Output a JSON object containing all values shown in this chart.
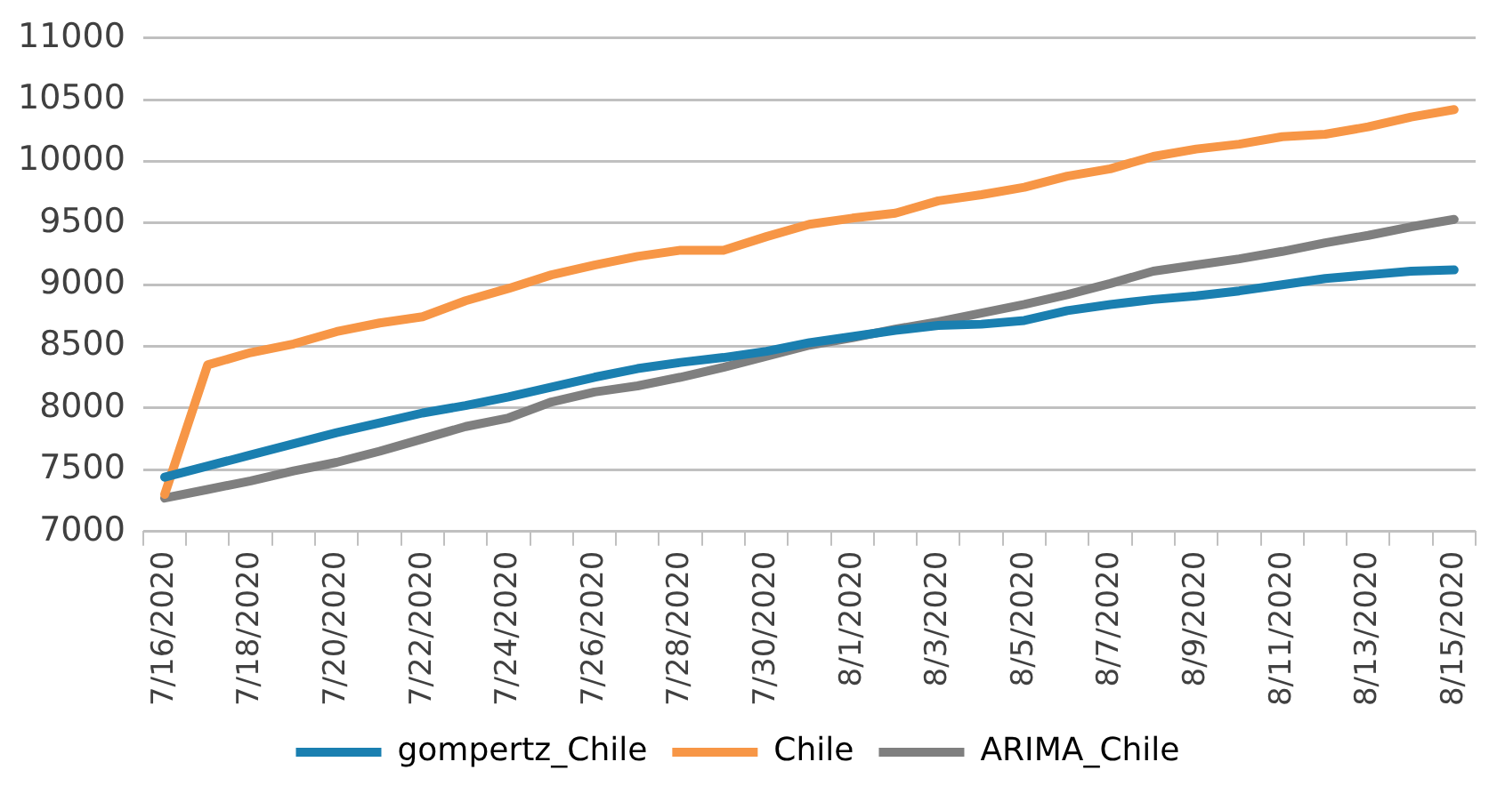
{
  "chart_data": {
    "type": "line",
    "categories": [
      "7/16/2020",
      null,
      "7/18/2020",
      null,
      "7/20/2020",
      null,
      "7/22/2020",
      null,
      "7/24/2020",
      null,
      "7/26/2020",
      null,
      "7/28/2020",
      null,
      "7/30/2020",
      null,
      "8/1/2020",
      null,
      "8/3/2020",
      null,
      "8/5/2020",
      null,
      "8/7/2020",
      null,
      "8/9/2020",
      null,
      "8/11/2020",
      null,
      "8/13/2020",
      null,
      "8/15/2020"
    ],
    "series": [
      {
        "name": "gompertz_Chile",
        "color": "#1a7fb0",
        "values": [
          7440,
          7530,
          7620,
          7710,
          7800,
          7880,
          7960,
          8020,
          8090,
          8170,
          8250,
          8320,
          8370,
          8410,
          8460,
          8530,
          8580,
          8630,
          8670,
          8680,
          8710,
          8790,
          8840,
          8880,
          8910,
          8950,
          9000,
          9050,
          9080,
          9110,
          9120
        ]
      },
      {
        "name": "Chile",
        "color": "#f79646",
        "values": [
          7300,
          8350,
          8450,
          8520,
          8620,
          8690,
          8740,
          8870,
          8970,
          9080,
          9160,
          9230,
          9280,
          9280,
          9390,
          9490,
          9540,
          9580,
          9680,
          9730,
          9790,
          9880,
          9940,
          10040,
          10100,
          10140,
          10200,
          10220,
          10280,
          10360,
          10420
        ]
      },
      {
        "name": "ARIMA_Chile",
        "color": "#7f7f7f",
        "values": [
          7270,
          7340,
          7410,
          7490,
          7560,
          7650,
          7750,
          7850,
          7920,
          8050,
          8130,
          8180,
          8250,
          8330,
          8420,
          8510,
          8570,
          8640,
          8700,
          8770,
          8840,
          8920,
          9010,
          9110,
          9160,
          9210,
          9270,
          9340,
          9400,
          9470,
          9530
        ]
      }
    ],
    "ylim": [
      7000,
      11000
    ],
    "yticks": [
      7000,
      7500,
      8000,
      8500,
      9000,
      9500,
      10000,
      10500,
      11000
    ],
    "grid": "y",
    "legend": "bottom",
    "marker": "none",
    "line_style": "solid"
  }
}
